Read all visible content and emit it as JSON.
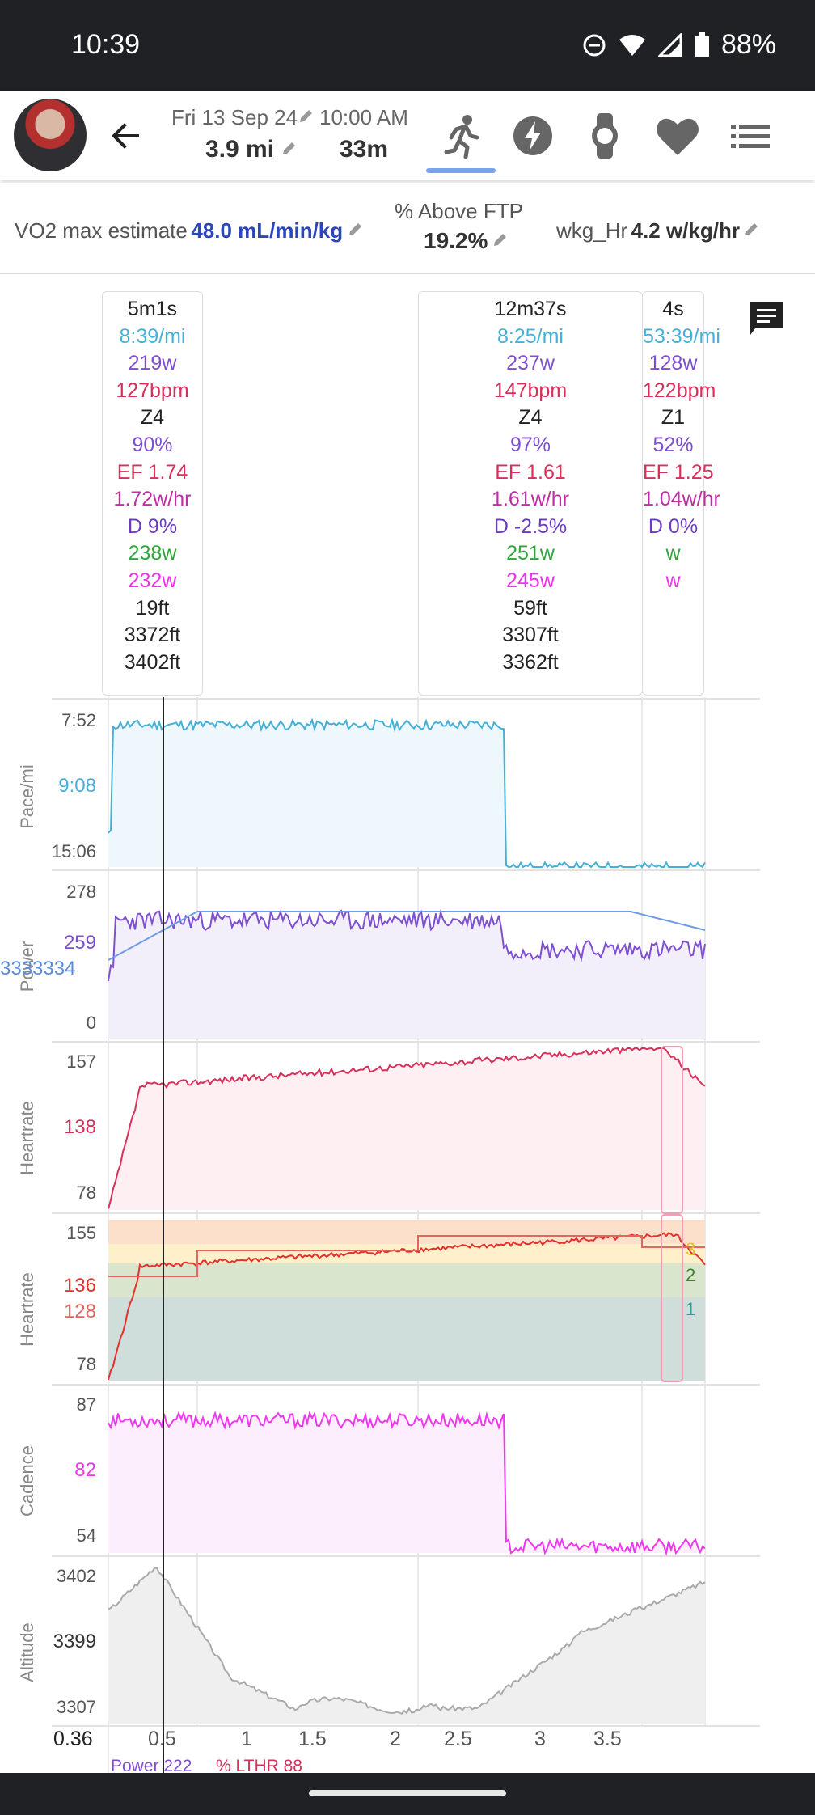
{
  "status_bar": {
    "time": "10:39",
    "battery": "88%"
  },
  "header": {
    "date": "Fri 13 Sep 24",
    "start_time": "10:00 AM",
    "distance": "3.9 mi",
    "duration": "33m",
    "tabs": [
      "run-icon",
      "power-icon",
      "watch-icon",
      "heart-icon",
      "list-icon"
    ]
  },
  "metrics": {
    "vo2_label": "VO2 max estimate",
    "vo2_value": "48.0 mL/min/kg",
    "ftp_label": "% Above FTP",
    "ftp_value": "19.2%",
    "wkg_label": "wkg_Hr",
    "wkg_value": "4.2 w/kg/hr"
  },
  "laps": [
    {
      "time": "5m1s",
      "pace": "8:39/mi",
      "power": "219w",
      "hr": "127bpm",
      "zone": "Z4",
      "pct": "90%",
      "ef": "EF 1.74",
      "wkghr": "1.72w/hr",
      "decoupling": "D 9%",
      "green": "238w",
      "magenta": "232w",
      "gain": "19ft",
      "alt_min": "3372ft",
      "alt_max": "3402ft"
    },
    {
      "time": "12m37s",
      "pace": "8:25/mi",
      "power": "237w",
      "hr": "147bpm",
      "zone": "Z4",
      "pct": "97%",
      "ef": "EF 1.61",
      "wkghr": "1.61w/hr",
      "decoupling": "D -2.5%",
      "green": "251w",
      "magenta": "245w",
      "gain": "59ft",
      "alt_min": "3307ft",
      "alt_max": "3362ft"
    },
    {
      "time": "4s",
      "pace": "53:39/mi",
      "power": "128w",
      "hr": "122bpm",
      "zone": "Z1",
      "pct": "52%",
      "ef": "EF 1.25",
      "wkghr": "1.04w/hr",
      "decoupling": "D 0%",
      "green": "w",
      "magenta": "w",
      "gain": "",
      "alt_min": "",
      "alt_max": ""
    }
  ],
  "charts": {
    "pace": {
      "label": "Pace/mi",
      "ticks": [
        "7:52",
        "9:08",
        "15:06"
      ],
      "color": "#45b0d8"
    },
    "power": {
      "label": "Power",
      "ticks": [
        "278",
        "259",
        "0"
      ],
      "overlay": "3333334",
      "color": "#7e4fd1"
    },
    "heartrate": {
      "label": "Heartrate",
      "ticks": [
        "157",
        "138",
        "78"
      ],
      "color": "#d9305a"
    },
    "hr_zones": {
      "label": "Heartrate",
      "ticks": [
        "155",
        "136",
        "128",
        "78"
      ],
      "zone_labels": [
        "3",
        "2",
        "1"
      ],
      "color": "#e4312b"
    },
    "cadence": {
      "label": "Cadence",
      "ticks": [
        "87",
        "82",
        "54"
      ],
      "color": "#ef37ef"
    },
    "altitude": {
      "label": "Altitude",
      "ticks": [
        "3402",
        "3399",
        "3307"
      ],
      "color": "#aaaaaa"
    },
    "x_axis": {
      "first": "0.36",
      "ticks": [
        "0.5",
        "1",
        "1.5",
        "2",
        "2.5",
        "3",
        "3.5"
      ]
    },
    "legend": {
      "power": "Power 222",
      "lthr": "% LTHR 88"
    }
  }
}
